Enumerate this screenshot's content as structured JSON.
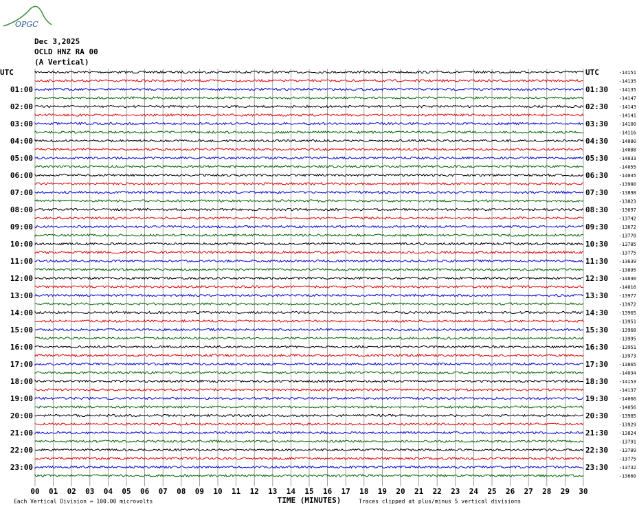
{
  "logo": "OPGC",
  "chart_data": {
    "type": "helicorder",
    "title_lines": [
      "Dec 3,2025",
      "OCLD HNZ RA 00",
      "(A Vertical)"
    ],
    "left_labels": [
      "UTC",
      "01:00",
      "02:00",
      "03:00",
      "04:00",
      "05:00",
      "06:00",
      "07:00",
      "08:00",
      "09:00",
      "10:00",
      "11:00",
      "12:00",
      "13:00",
      "14:00",
      "15:00",
      "16:00",
      "17:00",
      "18:00",
      "19:00",
      "20:00",
      "21:00",
      "22:00",
      "23:00"
    ],
    "right_labels": [
      "UTC",
      "01:30",
      "02:30",
      "03:30",
      "04:30",
      "05:30",
      "06:30",
      "07:30",
      "08:30",
      "09:30",
      "10:30",
      "11:30",
      "12:30",
      "13:30",
      "14:30",
      "15:30",
      "16:30",
      "17:30",
      "18:30",
      "19:30",
      "20:30",
      "21:30",
      "22:30",
      "23:30"
    ],
    "offsets": [
      -14151,
      -14135,
      -14135,
      -14147,
      -14143,
      -14141,
      -14100,
      -14116,
      -14080,
      -14088,
      -14033,
      -14055,
      -14035,
      -13980,
      -13898,
      -13823,
      -13697,
      -13742,
      -13672,
      -13770,
      -13785,
      -13775,
      -13639,
      -13895,
      -14030,
      -14016,
      -13977,
      -13972,
      -13965,
      -13951,
      -13968,
      -13995,
      -13951,
      -13973,
      -13865,
      -14034,
      -14153,
      -14137,
      -14066,
      -14056,
      -13985,
      -13929,
      -13824,
      -13791,
      -13789,
      -13775,
      -13732,
      -13660
    ],
    "colors": [
      "#000000",
      "#e00000",
      "#0000d0",
      "#006400"
    ],
    "xlim": [
      0,
      30
    ],
    "xticks": [
      {
        "value": 0,
        "label": "00"
      },
      {
        "value": 1,
        "label": "01"
      },
      {
        "value": 2,
        "label": "02"
      },
      {
        "value": 3,
        "label": "03"
      },
      {
        "value": 4,
        "label": "04"
      },
      {
        "value": 5,
        "label": "05"
      },
      {
        "value": 6,
        "label": "06"
      },
      {
        "value": 7,
        "label": "07"
      },
      {
        "value": 8,
        "label": "08"
      },
      {
        "value": 9,
        "label": "09"
      },
      10,
      11,
      12,
      13,
      14,
      15,
      16,
      17,
      18,
      19,
      20,
      21,
      22,
      23,
      24,
      25,
      26,
      27,
      28,
      29,
      30
    ],
    "x_label": "TIME (MINUTES)",
    "footer_left": "Each Vertical Division = 100.00 microvolts",
    "footer_right": "Traces clipped at plus/minus 5 vertical divisions"
  }
}
